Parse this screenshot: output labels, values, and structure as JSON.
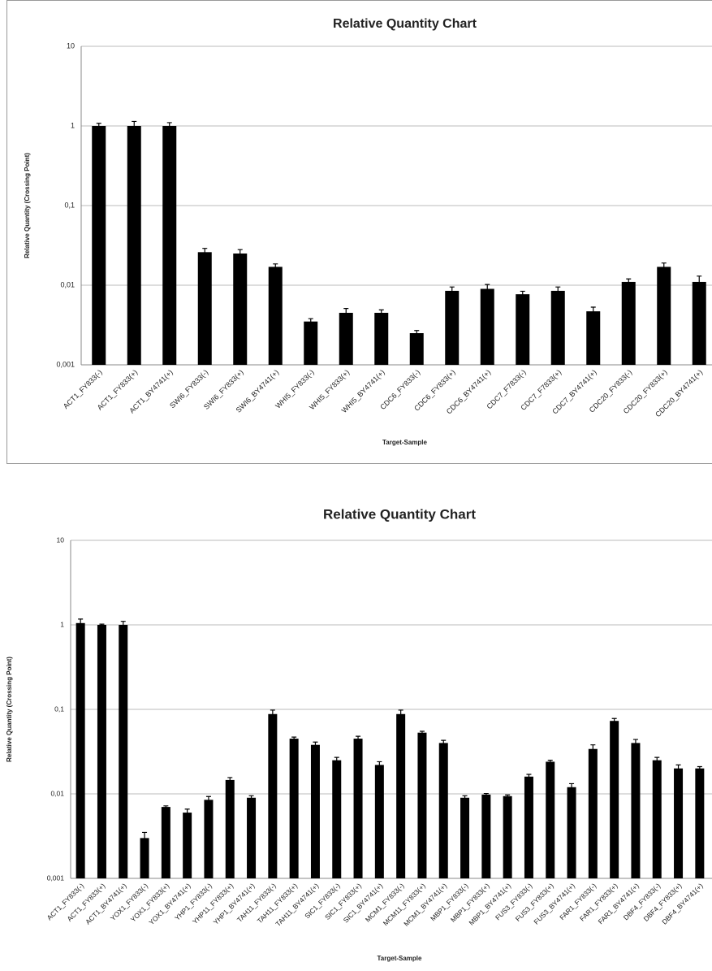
{
  "chart_data": [
    {
      "type": "bar",
      "title": "Relative Quantity Chart",
      "x_label": "Target-Sample",
      "y_label": "Relative Quantity (Crossing Point)",
      "log_scale": true,
      "grid": true,
      "color": "#000000",
      "ylim": [
        0.001,
        10
      ],
      "yticks": [
        {
          "value": 0.001,
          "label": "0,001"
        },
        {
          "value": 0.01,
          "label": "0,01"
        },
        {
          "value": 0.1,
          "label": "0,1"
        },
        1,
        10
      ],
      "categories": [
        "ACT1_FY833(-)",
        "ACT1_FY833(+)",
        "ACT1_BY4741(+)",
        "SWI6_FY833(-)",
        "SWI6_FY833(+)",
        "SWI6_BY4741(+)",
        "WHI5_FY833(-)",
        "WHI5_FY833(+)",
        "WHI5_BY4741(+)",
        "CDC6_FY833(-)",
        "CDC6_FY833(+)",
        "CDC6_BY4741(+)",
        "CDC7_F7833(-)",
        "CDC7_F7833(+)",
        "CDC7_BY4741(+)",
        "CDC20_FY833(-)",
        "CDC20_FY833(+)",
        "CDC20_BY4741(+)"
      ],
      "values": [
        1.0,
        1.0,
        1.0,
        0.026,
        0.025,
        0.017,
        0.0035,
        0.0045,
        0.0045,
        0.0025,
        0.0085,
        0.009,
        0.0077,
        0.0085,
        0.0047,
        0.011,
        0.017,
        0.011
      ],
      "errors": [
        0.08,
        0.14,
        0.1,
        0.003,
        0.003,
        0.0015,
        0.0003,
        0.0006,
        0.0004,
        0.0002,
        0.001,
        0.0012,
        0.0007,
        0.001,
        0.0006,
        0.001,
        0.002,
        0.002
      ]
    },
    {
      "type": "bar",
      "title": "Relative Quantity Chart",
      "x_label": "Target-Sample",
      "y_label": "Relative Quantity (Crossing Point)",
      "log_scale": true,
      "grid": true,
      "color": "#000000",
      "ylim": [
        0.001,
        10
      ],
      "yticks": [
        {
          "value": 0.001,
          "label": "0,001"
        },
        {
          "value": 0.01,
          "label": "0,01"
        },
        {
          "value": 0.1,
          "label": "0,1"
        },
        1,
        10
      ],
      "categories": [
        "ACT1_FY833(-)",
        "ACT1_FY833(+)",
        "ACT1_BY4741(+)",
        "YOX1_FY833(-)",
        "YOX1_FY833(+)",
        "YOX1_BY4741(+)",
        "YHP1_FY833(-)",
        "YHP11_FY833(+)",
        "YHP1_BY4741(+)",
        "TAH11_FY833(-)",
        "TAH11_FY833(+)",
        "TAH11_BY4741(+)",
        "SIC1_FY833(-)",
        "SIC1_FY833(+)",
        "SIC1_BY4741(+)",
        "MCM1_FY833(-)",
        "MCM11_FY833(+)",
        "MCM1_BY4741(+)",
        "MBP1_FY833(-)",
        "MBP1_FY833(+)",
        "MBP1_BY4741(+)",
        "FUS3_FY833(-)",
        "FUS3_FY833(+)",
        "FUS3_BY4741(+)",
        "FAR1_FY833(-)",
        "FAR1_FY833(+)",
        "FAR1_BY4741(+)",
        "DBF4_FY833(-)",
        "DBF4_FY833(+)",
        "DBF4_BY4741(+)"
      ],
      "values": [
        1.05,
        1.0,
        1.0,
        0.003,
        0.007,
        0.006,
        0.0085,
        0.0146,
        0.009,
        0.088,
        0.045,
        0.038,
        0.025,
        0.045,
        0.022,
        0.088,
        0.053,
        0.04,
        0.009,
        0.0098,
        0.0094,
        0.016,
        0.024,
        0.012,
        0.034,
        0.073,
        0.04,
        0.025,
        0.02,
        0.02
      ],
      "errors": [
        0.12,
        0.02,
        0.1,
        0.0005,
        0.0002,
        0.0006,
        0.0008,
        0.001,
        0.0005,
        0.01,
        0.002,
        0.003,
        0.002,
        0.003,
        0.002,
        0.01,
        0.002,
        0.003,
        0.0005,
        0.0003,
        0.0003,
        0.001,
        0.001,
        0.0012,
        0.004,
        0.005,
        0.004,
        0.002,
        0.002,
        0.001
      ]
    }
  ]
}
